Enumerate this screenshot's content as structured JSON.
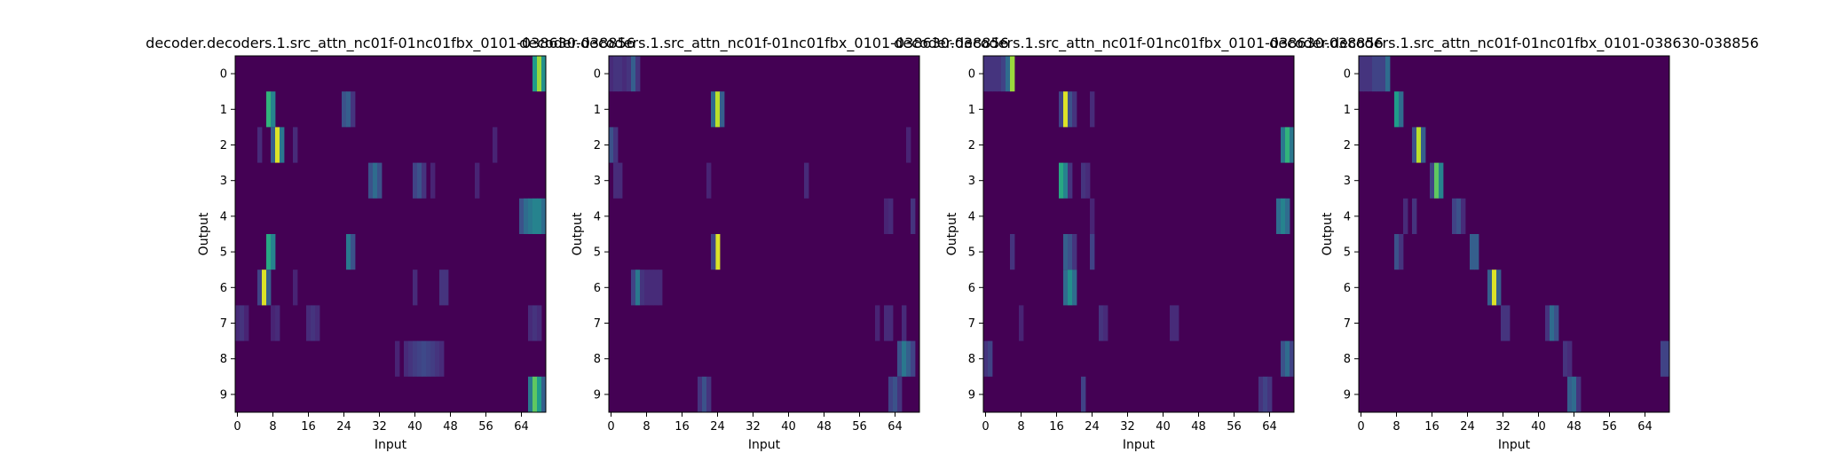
{
  "chart_data": [
    {
      "type": "heatmap",
      "title": "decoder.decoders.1.src_attn_nc01f-01nc01fbx_0101-038630-038856",
      "xlabel": "Input",
      "ylabel": "Output",
      "x_ticks": [
        "0",
        "8",
        "16",
        "24",
        "32",
        "40",
        "48",
        "56",
        "64"
      ],
      "y_ticks": [
        "0",
        "1",
        "2",
        "3",
        "4",
        "5",
        "6",
        "7",
        "8",
        "9"
      ],
      "n_inputs": 70,
      "n_outputs": 10,
      "colormap": "viridis",
      "cells": [
        {
          "row": 0,
          "col": 67,
          "v": 0.55
        },
        {
          "row": 0,
          "col": 68,
          "v": 0.85
        },
        {
          "row": 0,
          "col": 69,
          "v": 0.5
        },
        {
          "row": 1,
          "col": 7,
          "v": 0.65
        },
        {
          "row": 1,
          "col": 8,
          "v": 0.45
        },
        {
          "row": 1,
          "col": 24,
          "v": 0.25
        },
        {
          "row": 1,
          "col": 25,
          "v": 0.3
        },
        {
          "row": 1,
          "col": 26,
          "v": 0.15
        },
        {
          "row": 2,
          "col": 5,
          "v": 0.12
        },
        {
          "row": 2,
          "col": 8,
          "v": 0.3
        },
        {
          "row": 2,
          "col": 9,
          "v": 0.95
        },
        {
          "row": 2,
          "col": 10,
          "v": 0.4
        },
        {
          "row": 2,
          "col": 13,
          "v": 0.12
        },
        {
          "row": 2,
          "col": 58,
          "v": 0.1
        },
        {
          "row": 3,
          "col": 30,
          "v": 0.25
        },
        {
          "row": 3,
          "col": 31,
          "v": 0.35
        },
        {
          "row": 3,
          "col": 32,
          "v": 0.25
        },
        {
          "row": 3,
          "col": 40,
          "v": 0.2
        },
        {
          "row": 3,
          "col": 41,
          "v": 0.25
        },
        {
          "row": 3,
          "col": 42,
          "v": 0.15
        },
        {
          "row": 3,
          "col": 44,
          "v": 0.1
        },
        {
          "row": 3,
          "col": 54,
          "v": 0.1
        },
        {
          "row": 4,
          "col": 64,
          "v": 0.25
        },
        {
          "row": 4,
          "col": 65,
          "v": 0.35
        },
        {
          "row": 4,
          "col": 66,
          "v": 0.4
        },
        {
          "row": 4,
          "col": 67,
          "v": 0.45
        },
        {
          "row": 4,
          "col": 68,
          "v": 0.45
        },
        {
          "row": 4,
          "col": 69,
          "v": 0.35
        },
        {
          "row": 5,
          "col": 7,
          "v": 0.6
        },
        {
          "row": 5,
          "col": 8,
          "v": 0.45
        },
        {
          "row": 5,
          "col": 25,
          "v": 0.4
        },
        {
          "row": 5,
          "col": 26,
          "v": 0.25
        },
        {
          "row": 6,
          "col": 5,
          "v": 0.2
        },
        {
          "row": 6,
          "col": 6,
          "v": 0.95
        },
        {
          "row": 6,
          "col": 7,
          "v": 0.3
        },
        {
          "row": 6,
          "col": 13,
          "v": 0.1
        },
        {
          "row": 6,
          "col": 40,
          "v": 0.12
        },
        {
          "row": 6,
          "col": 46,
          "v": 0.15
        },
        {
          "row": 6,
          "col": 47,
          "v": 0.15
        },
        {
          "row": 7,
          "col": 0,
          "v": 0.12
        },
        {
          "row": 7,
          "col": 1,
          "v": 0.15
        },
        {
          "row": 7,
          "col": 2,
          "v": 0.1
        },
        {
          "row": 7,
          "col": 8,
          "v": 0.1
        },
        {
          "row": 7,
          "col": 9,
          "v": 0.12
        },
        {
          "row": 7,
          "col": 16,
          "v": 0.12
        },
        {
          "row": 7,
          "col": 17,
          "v": 0.15
        },
        {
          "row": 7,
          "col": 18,
          "v": 0.12
        },
        {
          "row": 7,
          "col": 66,
          "v": 0.12
        },
        {
          "row": 7,
          "col": 67,
          "v": 0.15
        },
        {
          "row": 7,
          "col": 68,
          "v": 0.12
        },
        {
          "row": 8,
          "col": 36,
          "v": 0.1
        },
        {
          "row": 8,
          "col": 38,
          "v": 0.12
        },
        {
          "row": 8,
          "col": 39,
          "v": 0.15
        },
        {
          "row": 8,
          "col": 40,
          "v": 0.18
        },
        {
          "row": 8,
          "col": 41,
          "v": 0.2
        },
        {
          "row": 8,
          "col": 42,
          "v": 0.22
        },
        {
          "row": 8,
          "col": 43,
          "v": 0.2
        },
        {
          "row": 8,
          "col": 44,
          "v": 0.18
        },
        {
          "row": 8,
          "col": 45,
          "v": 0.15
        },
        {
          "row": 8,
          "col": 46,
          "v": 0.12
        },
        {
          "row": 9,
          "col": 66,
          "v": 0.4
        },
        {
          "row": 9,
          "col": 67,
          "v": 0.75
        },
        {
          "row": 9,
          "col": 68,
          "v": 0.55
        },
        {
          "row": 9,
          "col": 69,
          "v": 0.3
        }
      ]
    },
    {
      "type": "heatmap",
      "title": "decoder.decoders.1.src_attn_nc01f-01nc01fbx_0101-038630-038856",
      "xlabel": "Input",
      "ylabel": "Output",
      "x_ticks": [
        "0",
        "8",
        "16",
        "24",
        "32",
        "40",
        "48",
        "56",
        "64"
      ],
      "y_ticks": [
        "0",
        "1",
        "2",
        "3",
        "4",
        "5",
        "6",
        "7",
        "8",
        "9"
      ],
      "n_inputs": 70,
      "n_outputs": 10,
      "colormap": "viridis",
      "cells": [
        {
          "row": 0,
          "col": 0,
          "v": 0.12
        },
        {
          "row": 0,
          "col": 1,
          "v": 0.15
        },
        {
          "row": 0,
          "col": 2,
          "v": 0.15
        },
        {
          "row": 0,
          "col": 3,
          "v": 0.12
        },
        {
          "row": 0,
          "col": 4,
          "v": 0.15
        },
        {
          "row": 0,
          "col": 5,
          "v": 0.3
        },
        {
          "row": 0,
          "col": 6,
          "v": 0.15
        },
        {
          "row": 1,
          "col": 23,
          "v": 0.35
        },
        {
          "row": 1,
          "col": 24,
          "v": 0.9
        },
        {
          "row": 1,
          "col": 25,
          "v": 0.3
        },
        {
          "row": 2,
          "col": 0,
          "v": 0.25
        },
        {
          "row": 2,
          "col": 1,
          "v": 0.15
        },
        {
          "row": 2,
          "col": 67,
          "v": 0.1
        },
        {
          "row": 3,
          "col": 1,
          "v": 0.12
        },
        {
          "row": 3,
          "col": 2,
          "v": 0.12
        },
        {
          "row": 3,
          "col": 44,
          "v": 0.12
        },
        {
          "row": 3,
          "col": 22,
          "v": 0.1
        },
        {
          "row": 4,
          "col": 62,
          "v": 0.1
        },
        {
          "row": 4,
          "col": 63,
          "v": 0.12
        },
        {
          "row": 4,
          "col": 68,
          "v": 0.15
        },
        {
          "row": 5,
          "col": 24,
          "v": 0.95
        },
        {
          "row": 5,
          "col": 23,
          "v": 0.2
        },
        {
          "row": 6,
          "col": 5,
          "v": 0.2
        },
        {
          "row": 6,
          "col": 6,
          "v": 0.4
        },
        {
          "row": 6,
          "col": 7,
          "v": 0.15
        },
        {
          "row": 6,
          "col": 8,
          "v": 0.12
        },
        {
          "row": 6,
          "col": 9,
          "v": 0.12
        },
        {
          "row": 6,
          "col": 10,
          "v": 0.12
        },
        {
          "row": 6,
          "col": 11,
          "v": 0.12
        },
        {
          "row": 7,
          "col": 60,
          "v": 0.1
        },
        {
          "row": 7,
          "col": 62,
          "v": 0.12
        },
        {
          "row": 7,
          "col": 63,
          "v": 0.12
        },
        {
          "row": 7,
          "col": 66,
          "v": 0.12
        },
        {
          "row": 8,
          "col": 65,
          "v": 0.25
        },
        {
          "row": 8,
          "col": 66,
          "v": 0.4
        },
        {
          "row": 8,
          "col": 67,
          "v": 0.3
        },
        {
          "row": 8,
          "col": 68,
          "v": 0.2
        },
        {
          "row": 9,
          "col": 20,
          "v": 0.15
        },
        {
          "row": 9,
          "col": 21,
          "v": 0.25
        },
        {
          "row": 9,
          "col": 22,
          "v": 0.15
        },
        {
          "row": 9,
          "col": 63,
          "v": 0.2
        },
        {
          "row": 9,
          "col": 64,
          "v": 0.25
        },
        {
          "row": 9,
          "col": 65,
          "v": 0.15
        }
      ]
    },
    {
      "type": "heatmap",
      "title": "decoder.decoders.1.src_attn_nc01f-01nc01fbx_0101-038630-038856",
      "xlabel": "Input",
      "ylabel": "Output",
      "x_ticks": [
        "0",
        "8",
        "16",
        "24",
        "32",
        "40",
        "48",
        "56",
        "64"
      ],
      "y_ticks": [
        "0",
        "1",
        "2",
        "3",
        "4",
        "5",
        "6",
        "7",
        "8",
        "9"
      ],
      "n_inputs": 70,
      "n_outputs": 10,
      "colormap": "viridis",
      "cells": [
        {
          "row": 0,
          "col": 0,
          "v": 0.15
        },
        {
          "row": 0,
          "col": 1,
          "v": 0.15
        },
        {
          "row": 0,
          "col": 2,
          "v": 0.15
        },
        {
          "row": 0,
          "col": 3,
          "v": 0.15
        },
        {
          "row": 0,
          "col": 4,
          "v": 0.2
        },
        {
          "row": 0,
          "col": 5,
          "v": 0.35
        },
        {
          "row": 0,
          "col": 6,
          "v": 0.85
        },
        {
          "row": 1,
          "col": 17,
          "v": 0.2
        },
        {
          "row": 1,
          "col": 18,
          "v": 0.95
        },
        {
          "row": 1,
          "col": 19,
          "v": 0.25
        },
        {
          "row": 1,
          "col": 20,
          "v": 0.15
        },
        {
          "row": 1,
          "col": 24,
          "v": 0.12
        },
        {
          "row": 2,
          "col": 67,
          "v": 0.4
        },
        {
          "row": 2,
          "col": 68,
          "v": 0.65
        },
        {
          "row": 2,
          "col": 69,
          "v": 0.4
        },
        {
          "row": 3,
          "col": 17,
          "v": 0.6
        },
        {
          "row": 3,
          "col": 18,
          "v": 0.45
        },
        {
          "row": 3,
          "col": 19,
          "v": 0.15
        },
        {
          "row": 3,
          "col": 22,
          "v": 0.15
        },
        {
          "row": 3,
          "col": 23,
          "v": 0.12
        },
        {
          "row": 4,
          "col": 66,
          "v": 0.35
        },
        {
          "row": 4,
          "col": 67,
          "v": 0.45
        },
        {
          "row": 4,
          "col": 68,
          "v": 0.35
        },
        {
          "row": 4,
          "col": 24,
          "v": 0.1
        },
        {
          "row": 5,
          "col": 6,
          "v": 0.15
        },
        {
          "row": 5,
          "col": 18,
          "v": 0.3
        },
        {
          "row": 5,
          "col": 19,
          "v": 0.25
        },
        {
          "row": 5,
          "col": 20,
          "v": 0.15
        },
        {
          "row": 5,
          "col": 24,
          "v": 0.2
        },
        {
          "row": 6,
          "col": 18,
          "v": 0.35
        },
        {
          "row": 6,
          "col": 19,
          "v": 0.5
        },
        {
          "row": 6,
          "col": 20,
          "v": 0.35
        },
        {
          "row": 7,
          "col": 8,
          "v": 0.1
        },
        {
          "row": 7,
          "col": 26,
          "v": 0.15
        },
        {
          "row": 7,
          "col": 27,
          "v": 0.12
        },
        {
          "row": 7,
          "col": 42,
          "v": 0.12
        },
        {
          "row": 7,
          "col": 43,
          "v": 0.12
        },
        {
          "row": 8,
          "col": 0,
          "v": 0.15
        },
        {
          "row": 8,
          "col": 1,
          "v": 0.2
        },
        {
          "row": 8,
          "col": 67,
          "v": 0.25
        },
        {
          "row": 8,
          "col": 68,
          "v": 0.35
        },
        {
          "row": 8,
          "col": 69,
          "v": 0.2
        },
        {
          "row": 9,
          "col": 22,
          "v": 0.2
        },
        {
          "row": 9,
          "col": 62,
          "v": 0.15
        },
        {
          "row": 9,
          "col": 63,
          "v": 0.2
        },
        {
          "row": 9,
          "col": 64,
          "v": 0.15
        }
      ]
    },
    {
      "type": "heatmap",
      "title": "decoder.decoders.1.src_attn_nc01f-01nc01fbx_0101-038630-038856",
      "xlabel": "Input",
      "ylabel": "Output",
      "x_ticks": [
        "0",
        "8",
        "16",
        "24",
        "32",
        "40",
        "48",
        "56",
        "64"
      ],
      "y_ticks": [
        "0",
        "1",
        "2",
        "3",
        "4",
        "5",
        "6",
        "7",
        "8",
        "9"
      ],
      "n_inputs": 70,
      "n_outputs": 10,
      "colormap": "viridis",
      "cells": [
        {
          "row": 0,
          "col": 0,
          "v": 0.15
        },
        {
          "row": 0,
          "col": 1,
          "v": 0.15
        },
        {
          "row": 0,
          "col": 2,
          "v": 0.15
        },
        {
          "row": 0,
          "col": 3,
          "v": 0.2
        },
        {
          "row": 0,
          "col": 4,
          "v": 0.2
        },
        {
          "row": 0,
          "col": 5,
          "v": 0.2
        },
        {
          "row": 0,
          "col": 6,
          "v": 0.35
        },
        {
          "row": 1,
          "col": 8,
          "v": 0.55
        },
        {
          "row": 1,
          "col": 9,
          "v": 0.35
        },
        {
          "row": 2,
          "col": 12,
          "v": 0.25
        },
        {
          "row": 2,
          "col": 13,
          "v": 0.9
        },
        {
          "row": 2,
          "col": 14,
          "v": 0.3
        },
        {
          "row": 3,
          "col": 16,
          "v": 0.2
        },
        {
          "row": 3,
          "col": 17,
          "v": 0.75
        },
        {
          "row": 3,
          "col": 18,
          "v": 0.45
        },
        {
          "row": 4,
          "col": 10,
          "v": 0.12
        },
        {
          "row": 4,
          "col": 12,
          "v": 0.15
        },
        {
          "row": 4,
          "col": 21,
          "v": 0.2
        },
        {
          "row": 4,
          "col": 22,
          "v": 0.25
        },
        {
          "row": 4,
          "col": 23,
          "v": 0.12
        },
        {
          "row": 5,
          "col": 8,
          "v": 0.25
        },
        {
          "row": 5,
          "col": 9,
          "v": 0.15
        },
        {
          "row": 5,
          "col": 25,
          "v": 0.3
        },
        {
          "row": 5,
          "col": 26,
          "v": 0.3
        },
        {
          "row": 6,
          "col": 29,
          "v": 0.3
        },
        {
          "row": 6,
          "col": 30,
          "v": 0.95
        },
        {
          "row": 6,
          "col": 31,
          "v": 0.3
        },
        {
          "row": 7,
          "col": 32,
          "v": 0.15
        },
        {
          "row": 7,
          "col": 33,
          "v": 0.15
        },
        {
          "row": 7,
          "col": 42,
          "v": 0.15
        },
        {
          "row": 7,
          "col": 43,
          "v": 0.35
        },
        {
          "row": 7,
          "col": 44,
          "v": 0.25
        },
        {
          "row": 8,
          "col": 46,
          "v": 0.15
        },
        {
          "row": 8,
          "col": 47,
          "v": 0.12
        },
        {
          "row": 8,
          "col": 68,
          "v": 0.2
        },
        {
          "row": 8,
          "col": 69,
          "v": 0.2
        },
        {
          "row": 9,
          "col": 47,
          "v": 0.3
        },
        {
          "row": 9,
          "col": 48,
          "v": 0.35
        },
        {
          "row": 9,
          "col": 49,
          "v": 0.15
        }
      ]
    }
  ]
}
